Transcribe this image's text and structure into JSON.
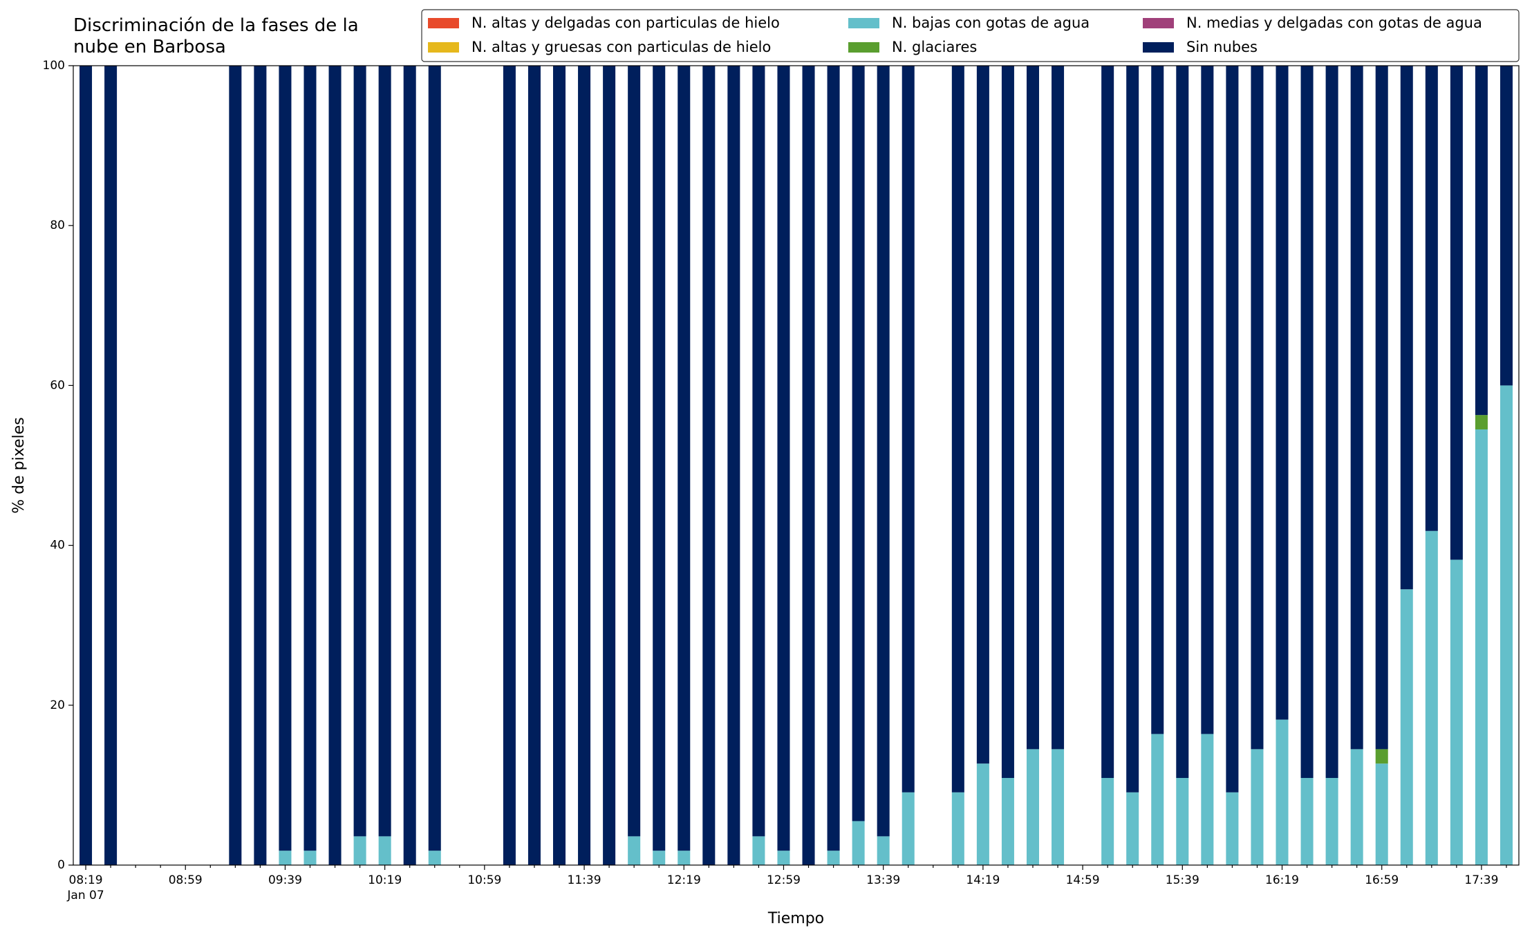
{
  "chart_data": {
    "type": "stacked_bar",
    "title": "Discriminación de la fases de la\nnube en Barbosa",
    "x_label": "Tiempo",
    "y_label": "% de pixeles",
    "x_sublabel": "Jan 07",
    "categories": [
      "08:19",
      null,
      null,
      null,
      "08:59",
      null,
      null,
      null,
      "09:39",
      null,
      null,
      null,
      "10:19",
      null,
      null,
      null,
      "10:59",
      null,
      null,
      null,
      "11:39",
      null,
      null,
      null,
      "12:19",
      null,
      null,
      null,
      "12:59",
      null,
      null,
      null,
      "13:39",
      null,
      null,
      null,
      "14:19",
      null,
      null,
      null,
      "14:59",
      null,
      null,
      null,
      "15:39",
      null,
      null,
      null,
      "16:19",
      null,
      null,
      null,
      "16:59",
      null,
      null,
      null,
      "17:39",
      null
    ],
    "ylim": [
      0,
      100
    ],
    "yticks": [
      0,
      20,
      40,
      60,
      80,
      100
    ],
    "legend": "top-right",
    "series": [
      {
        "name": "N. altas y delgadas con particulas de hielo",
        "color": "#e84a2b",
        "values": [
          0,
          0,
          null,
          null,
          null,
          null,
          0,
          0,
          0,
          0,
          0,
          0,
          0,
          0,
          0,
          null,
          null,
          0,
          0,
          0,
          0,
          0,
          0,
          0,
          0,
          0,
          0,
          0,
          0,
          0,
          0,
          0,
          0,
          0,
          null,
          0,
          0,
          0,
          0,
          0,
          null,
          0,
          0,
          0,
          0,
          0,
          0,
          0,
          0,
          0,
          0,
          0,
          0,
          0,
          0,
          0,
          0,
          0
        ]
      },
      {
        "name": "N. altas y gruesas con particulas de hielo",
        "color": "#e6b81c",
        "values": [
          0,
          0,
          null,
          null,
          null,
          null,
          0,
          0,
          0,
          0,
          0,
          0,
          0,
          0,
          0,
          null,
          null,
          0,
          0,
          0,
          0,
          0,
          0,
          0,
          0,
          0,
          0,
          0,
          0,
          0,
          0,
          0,
          0,
          0,
          null,
          0,
          0,
          0,
          0,
          0,
          null,
          0,
          0,
          0,
          0,
          0,
          0,
          0,
          0,
          0,
          0,
          0,
          0,
          0,
          0,
          0,
          0,
          0
        ]
      },
      {
        "name": "N. bajas con gotas de agua",
        "color": "#64bfca",
        "values": [
          0,
          0,
          null,
          null,
          null,
          null,
          0,
          0,
          1.8,
          1.8,
          0,
          3.6,
          3.6,
          0,
          1.8,
          null,
          null,
          0,
          0,
          0,
          0,
          0,
          3.6,
          1.8,
          1.8,
          0,
          0,
          3.6,
          1.8,
          0,
          1.8,
          5.5,
          3.6,
          9.1,
          null,
          9.1,
          12.7,
          10.9,
          14.5,
          14.5,
          null,
          10.9,
          9.1,
          16.4,
          10.9,
          16.4,
          9.1,
          14.5,
          18.2,
          10.9,
          10.9,
          14.5,
          12.7,
          34.5,
          41.8,
          38.2,
          54.5,
          60.0
        ]
      },
      {
        "name": "N. glaciares",
        "color": "#5a9e2f",
        "values": [
          0,
          0,
          null,
          null,
          null,
          null,
          0,
          0,
          0,
          0,
          0,
          0,
          0,
          0,
          0,
          null,
          null,
          0,
          0,
          0,
          0,
          0,
          0,
          0,
          0,
          0,
          0,
          0,
          0,
          0,
          0,
          0,
          0,
          0,
          null,
          0,
          0,
          0,
          0,
          0,
          null,
          0,
          0,
          0,
          0,
          0,
          0,
          0,
          0,
          0,
          0,
          0,
          1.8,
          0,
          0,
          0,
          1.8,
          0
        ]
      },
      {
        "name": "N. medias y delgadas con gotas de agua",
        "color": "#a0407a",
        "values": [
          0,
          0,
          null,
          null,
          null,
          null,
          0,
          0,
          0,
          0,
          0,
          0,
          0,
          0,
          0,
          null,
          null,
          0,
          0,
          0,
          0,
          0,
          0,
          0,
          0,
          0,
          0,
          0,
          0,
          0,
          0,
          0,
          0,
          0,
          null,
          0,
          0,
          0,
          0,
          0,
          null,
          0,
          0,
          0,
          0,
          0,
          0,
          0,
          0,
          0,
          0,
          0,
          0,
          0,
          0,
          0,
          0,
          0
        ]
      },
      {
        "name": "Sin nubes",
        "color": "#001f5c",
        "values": [
          100,
          100,
          null,
          null,
          null,
          null,
          100,
          100,
          98.2,
          98.2,
          100,
          96.4,
          96.4,
          100,
          98.2,
          null,
          null,
          100,
          100,
          100,
          100,
          100,
          96.4,
          98.2,
          98.2,
          100,
          100,
          96.4,
          98.2,
          100,
          98.2,
          94.5,
          96.4,
          90.9,
          null,
          90.9,
          87.3,
          89.1,
          85.5,
          85.5,
          null,
          89.1,
          90.9,
          83.6,
          89.1,
          83.6,
          90.9,
          85.5,
          81.8,
          89.1,
          89.1,
          85.5,
          85.5,
          65.5,
          58.2,
          61.8,
          43.7,
          40.0
        ]
      }
    ]
  }
}
